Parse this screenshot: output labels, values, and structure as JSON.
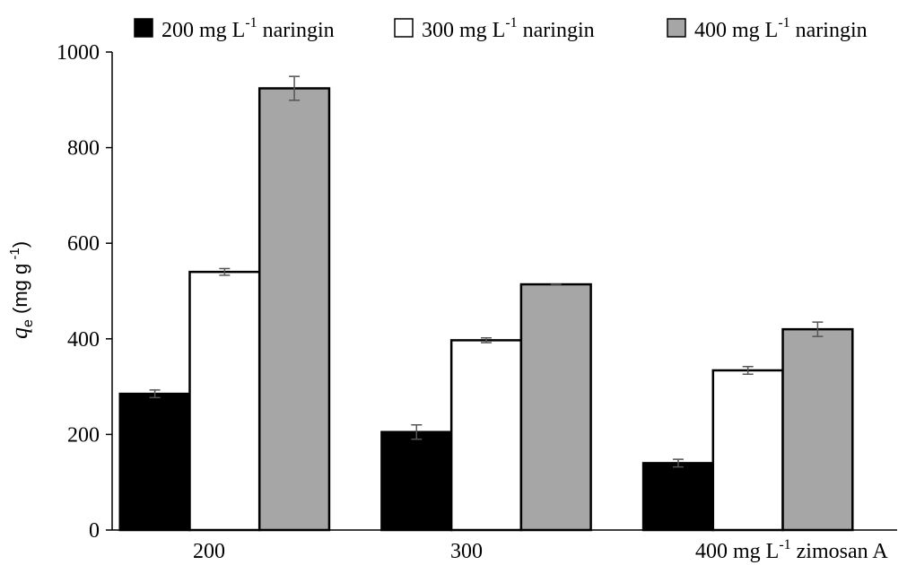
{
  "chart_data": {
    "type": "bar",
    "categories": [
      "200",
      "300",
      "400 mg L⁻¹  zimosan A"
    ],
    "category_label_parts": [
      {
        "main": "200",
        "sup": "",
        "tail": ""
      },
      {
        "main": "300",
        "sup": "",
        "tail": ""
      },
      {
        "main": "400 mg L",
        "sup": "-1",
        "tail": " zimosan A"
      }
    ],
    "series": [
      {
        "name": "200 mg L-1 naringin",
        "legend_main": "200 mg L",
        "legend_sup": "-1",
        "legend_tail": " naringin",
        "color": "#000000",
        "values": [
          285,
          205,
          140
        ],
        "errors": [
          8,
          15,
          8
        ]
      },
      {
        "name": "300 mg L-1 naringin",
        "legend_main": "300 mg L",
        "legend_sup": "-1",
        "legend_tail": " naringin",
        "color": "#ffffff",
        "values": [
          540,
          397,
          334
        ],
        "errors": [
          7,
          5,
          8
        ]
      },
      {
        "name": "400 mg L-1 naringin",
        "legend_main": "400 mg L",
        "legend_sup": "-1",
        "legend_tail": " naringin",
        "color": "#a6a6a6",
        "values": [
          924,
          514,
          420
        ],
        "errors": [
          25,
          0,
          15
        ]
      }
    ],
    "y_ticks": [
      "0",
      "200",
      "400",
      "600",
      "800",
      "1000"
    ],
    "ylim": [
      0,
      1000
    ],
    "ylabel": {
      "q": "q",
      "sub": "e",
      "unit_main": " (mg g",
      "unit_sup": " -1",
      "unit_close": ")"
    },
    "title": "",
    "xlabel": "",
    "grid": false,
    "legend_position": "top"
  }
}
